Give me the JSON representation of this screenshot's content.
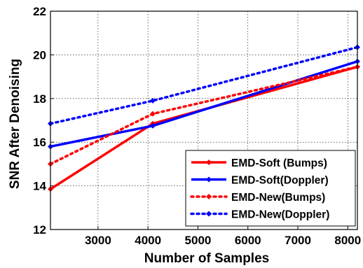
{
  "chart_data": {
    "type": "line",
    "title": "",
    "xlabel": "Number of Samples",
    "ylabel": "SNR After Denoising",
    "xlim": [
      2048,
      8192
    ],
    "ylim": [
      12,
      22
    ],
    "xticks": [
      3000,
      4000,
      5000,
      6000,
      7000,
      8000
    ],
    "xtick_labels": [
      "3000",
      "4000",
      "5000",
      "6000",
      "7000",
      "8000"
    ],
    "yticks": [
      12,
      14,
      16,
      18,
      20,
      22
    ],
    "ytick_labels": [
      "12",
      "14",
      "16",
      "18",
      "20",
      "22"
    ],
    "grid": true,
    "legend_position": "bottom-right",
    "series": [
      {
        "name": "EMD-Soft (Bumps)",
        "color": "#ff0000",
        "style": "solid",
        "x": [
          2048,
          4096,
          8192
        ],
        "y": [
          13.85,
          16.85,
          19.45
        ]
      },
      {
        "name": "EMD-Soft(Doppler)",
        "color": "#0000ff",
        "style": "solid",
        "x": [
          2048,
          4096,
          8192
        ],
        "y": [
          15.8,
          16.75,
          19.7
        ]
      },
      {
        "name": "EMD-New(Bumps)",
        "color": "#ff0000",
        "style": "dotted",
        "x": [
          2048,
          4096,
          8192
        ],
        "y": [
          15.0,
          17.3,
          19.45
        ]
      },
      {
        "name": "EMD-New(Doppler)",
        "color": "#0000ff",
        "style": "dotted",
        "x": [
          2048,
          4096,
          8192
        ],
        "y": [
          16.85,
          17.9,
          20.35
        ]
      }
    ]
  }
}
